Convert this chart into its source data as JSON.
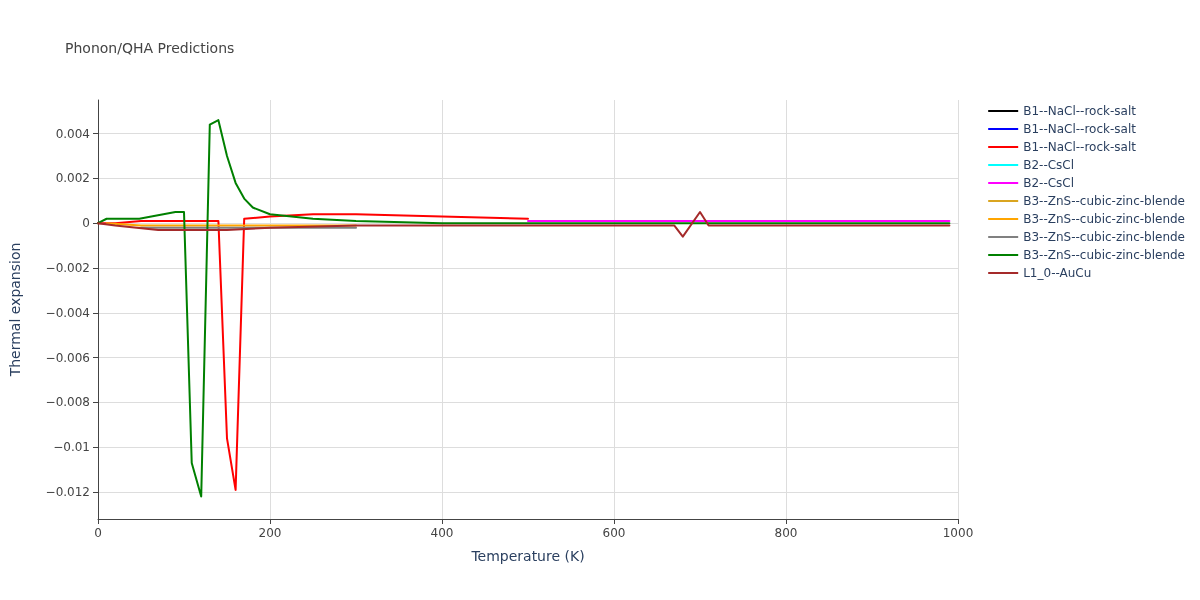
{
  "chart_data": {
    "type": "line",
    "title": "Phonon/QHA Predictions",
    "xlabel": "Temperature (K)",
    "ylabel": "Thermal expansion",
    "xlim": [
      0,
      1000
    ],
    "xticks": [
      0,
      200,
      400,
      600,
      800,
      1000
    ],
    "ylim": [
      -0.0132,
      0.0055
    ],
    "yticks": [
      {
        "value": -0.012,
        "label": "−0.012"
      },
      {
        "value": -0.01,
        "label": "−0.01"
      },
      {
        "value": -0.008,
        "label": "−0.008"
      },
      {
        "value": -0.006,
        "label": "−0.006"
      },
      {
        "value": -0.004,
        "label": "−0.004"
      },
      {
        "value": -0.002,
        "label": "−0.002"
      },
      0,
      0.002,
      0.004
    ],
    "grid": true,
    "legend": "top right",
    "line_style": "solid",
    "marker": "none",
    "series": [
      {
        "name": "B1--NaCl--rock-salt",
        "color": "#000000"
      },
      {
        "name": "B1--NaCl--rock-salt",
        "color": "#0000ff"
      },
      {
        "name": "B1--NaCl--rock-salt",
        "color": "#ff0000",
        "x": [
          0,
          20,
          50,
          100,
          140,
          150,
          160,
          170,
          200,
          250,
          300,
          400,
          500
        ],
        "values": [
          0,
          0,
          0.0001,
          0.0001,
          0.0001,
          -0.0096,
          -0.0119,
          0.0002,
          0.0003,
          0.0004,
          0.0004,
          0.0003,
          0.0002
        ]
      },
      {
        "name": "B2--CsCl",
        "color": "#00ffff"
      },
      {
        "name": "B2--CsCl",
        "color": "#ff00ff",
        "x": [
          500,
          700,
          990
        ],
        "values": [
          0.0001,
          0.0001,
          0.0001
        ]
      },
      {
        "name": "B3--ZnS--cubic-zinc-blende",
        "color": "#daa520"
      },
      {
        "name": "B3--ZnS--cubic-zinc-blende",
        "color": "#ffa500",
        "x": [
          10,
          50,
          100,
          200,
          300
        ],
        "values": [
          0,
          -0.0001,
          -0.0001,
          -0.0001,
          -0.0001
        ]
      },
      {
        "name": "B3--ZnS--cubic-zinc-blende",
        "color": "#808080",
        "x": [
          50,
          100,
          200,
          300
        ],
        "values": [
          -0.0002,
          -0.0002,
          -0.0002,
          -0.0002
        ]
      },
      {
        "name": "B3--ZnS--cubic-zinc-blende",
        "color": "#008000",
        "x": [
          0,
          10,
          48,
          90,
          100,
          109,
          120,
          130,
          140,
          150,
          160,
          170,
          180,
          200,
          250,
          300,
          400,
          700,
          990
        ],
        "values": [
          0,
          0.0002,
          0.0002,
          0.0005,
          0.0005,
          -0.0107,
          -0.0122,
          0.0044,
          0.0046,
          0.003,
          0.0018,
          0.0011,
          0.0007,
          0.0004,
          0.0002,
          0.0001,
          0,
          0,
          0
        ]
      },
      {
        "name": "L1_0--AuCu",
        "color": "#a52a2a",
        "x": [
          0,
          20,
          70,
          100,
          150,
          200,
          300,
          400,
          600,
          670,
          680,
          700,
          710,
          800,
          990
        ],
        "values": [
          0,
          -0.0001,
          -0.0003,
          -0.0003,
          -0.0003,
          -0.0002,
          -0.0001,
          -0.0001,
          -0.0001,
          -0.0001,
          -0.0006,
          0.0005,
          -0.0001,
          -0.0001,
          -0.0001
        ]
      }
    ]
  }
}
